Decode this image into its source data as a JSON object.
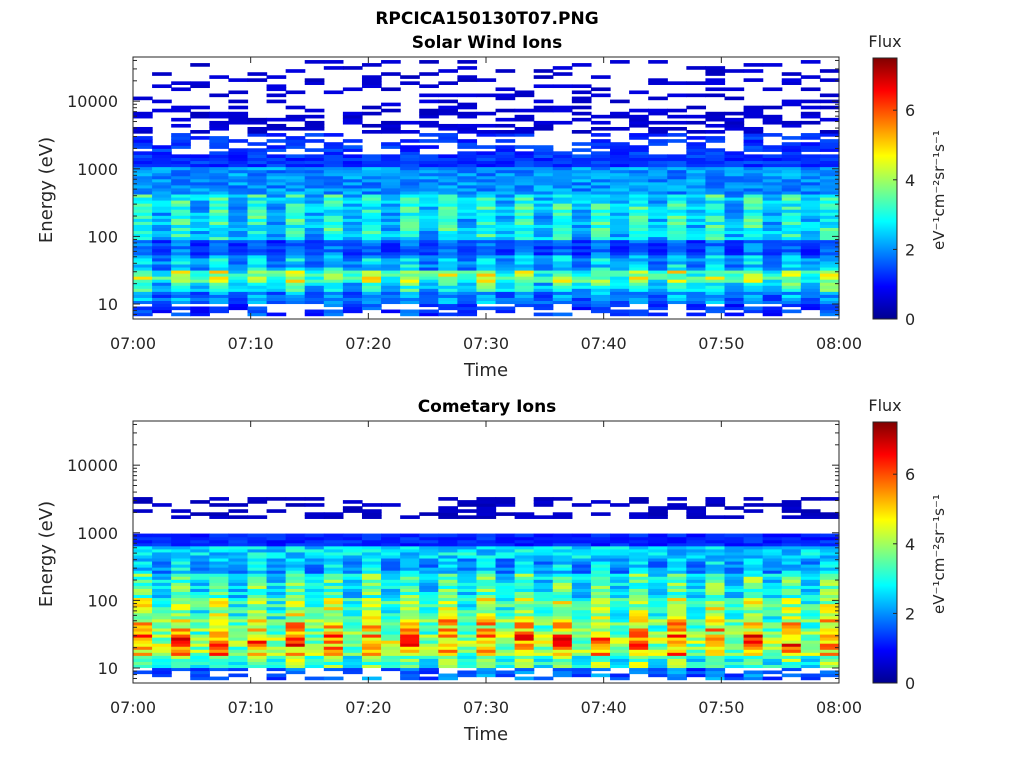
{
  "figure_title": "RPCICA150130T07.PNG",
  "chart_data": [
    {
      "type": "heatmap",
      "title": "Solar Wind Ions",
      "xlabel": "Time",
      "ylabel": "Energy (eV)",
      "yscale": "log",
      "ylim": [
        6,
        45000
      ],
      "x_tick_labels": [
        "07:00",
        "07:10",
        "07:20",
        "07:30",
        "07:40",
        "07:50",
        "08:00"
      ],
      "y_tick_labels": [
        "10",
        "100",
        "1000",
        "10000"
      ],
      "y_tick_values": [
        10,
        100,
        1000,
        10000
      ],
      "colorbar": {
        "title": "Flux",
        "label": "eV⁻¹cm⁻²sr⁻¹s⁻¹",
        "range": [
          0,
          7.5
        ],
        "tick_labels": [
          "0",
          "2",
          "4",
          "6"
        ],
        "tick_values": [
          0,
          2,
          4,
          6
        ],
        "colormap": "jet"
      },
      "profile": {
        "description_bands_log10_energy": [
          {
            "from": 0.8,
            "to": 1.0,
            "flux": 1.6
          },
          {
            "from": 1.0,
            "to": 1.15,
            "flux": 2.2
          },
          {
            "from": 1.15,
            "to": 1.3,
            "flux": 3.2
          },
          {
            "from": 1.3,
            "to": 1.5,
            "flux": 4.2
          },
          {
            "from": 1.5,
            "to": 1.7,
            "flux": 2.6
          },
          {
            "from": 1.7,
            "to": 1.95,
            "flux": 1.8
          },
          {
            "from": 1.95,
            "to": 2.6,
            "flux": 3.1
          },
          {
            "from": 2.6,
            "to": 3.0,
            "flux": 2.0
          },
          {
            "from": 3.0,
            "to": 3.5,
            "flux": 1.3
          },
          {
            "from": 3.5,
            "to": 4.6,
            "flux": 0.6
          }
        ]
      },
      "seed": 7
    },
    {
      "type": "heatmap",
      "title": "Cometary Ions",
      "xlabel": "Time",
      "ylabel": "Energy (eV)",
      "yscale": "log",
      "ylim": [
        6,
        45000
      ],
      "x_tick_labels": [
        "07:00",
        "07:10",
        "07:20",
        "07:30",
        "07:40",
        "07:50",
        "08:00"
      ],
      "y_tick_labels": [
        "10",
        "100",
        "1000",
        "10000"
      ],
      "y_tick_values": [
        10,
        100,
        1000,
        10000
      ],
      "colorbar": {
        "title": "Flux",
        "label": "eV⁻¹cm⁻²sr⁻¹s⁻¹",
        "range": [
          0,
          7.5
        ],
        "tick_labels": [
          "0",
          "2",
          "4",
          "6"
        ],
        "tick_values": [
          0,
          2,
          4,
          6
        ],
        "colormap": "jet"
      },
      "profile": {
        "description_bands_log10_energy": [
          {
            "from": 0.8,
            "to": 1.0,
            "flux": 1.9
          },
          {
            "from": 1.0,
            "to": 1.15,
            "flux": 3.8
          },
          {
            "from": 1.15,
            "to": 1.3,
            "flux": 5.3
          },
          {
            "from": 1.3,
            "to": 1.5,
            "flux": 5.6
          },
          {
            "from": 1.5,
            "to": 1.7,
            "flux": 4.9
          },
          {
            "from": 1.7,
            "to": 2.0,
            "flux": 4.2
          },
          {
            "from": 2.0,
            "to": 2.4,
            "flux": 3.5
          },
          {
            "from": 2.4,
            "to": 2.8,
            "flux": 2.6
          },
          {
            "from": 2.8,
            "to": 2.95,
            "flux": 1.2
          },
          {
            "from": 3.2,
            "to": 3.5,
            "flux": 0.5
          }
        ]
      },
      "seed": 19
    }
  ]
}
